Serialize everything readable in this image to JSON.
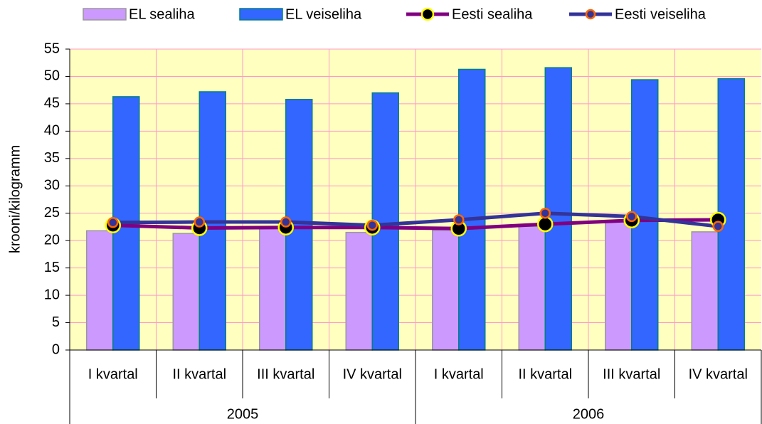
{
  "chart_data": {
    "type": "bar",
    "y_label": "krooni/kilogramm",
    "categories": [
      "I kvartal",
      "II kvartal",
      "III kvartal",
      "IV kvartal",
      "I kvartal",
      "II kvartal",
      "III kvartal",
      "IV kvartal"
    ],
    "groups": [
      "2005",
      "2006"
    ],
    "series": [
      {
        "name": "EL sealiha",
        "type": "bar",
        "color": "#cc99ff",
        "edge": "#999999",
        "values": [
          21.8,
          21.3,
          22.3,
          21.5,
          21.9,
          22.6,
          23.6,
          21.6
        ]
      },
      {
        "name": "EL veiseliha",
        "type": "bar",
        "color": "#3366ff",
        "edge": "#008080",
        "values": [
          46.3,
          47.2,
          45.8,
          47.0,
          51.3,
          51.6,
          49.4,
          49.6
        ]
      },
      {
        "name": "Eesti sealiha",
        "type": "line",
        "color": "#800080",
        "marker_color": "#000000",
        "marker_edge": "#ffff00",
        "values": [
          22.8,
          22.3,
          22.4,
          22.4,
          22.2,
          23.0,
          23.7,
          23.8
        ]
      },
      {
        "name": "Eesti veiseliha",
        "type": "line",
        "color": "#333399",
        "marker_color": "#333399",
        "marker_edge": "#ff6600",
        "values": [
          23.3,
          23.4,
          23.4,
          22.8,
          23.8,
          25.0,
          24.4,
          22.6
        ]
      }
    ],
    "ylim": [
      0,
      55
    ],
    "yticks": [
      0,
      5,
      10,
      15,
      20,
      25,
      30,
      35,
      40,
      45,
      50,
      55
    ],
    "grid": true,
    "grid_color": "#ff99cc",
    "background": "#ffffc0",
    "legend": "top"
  }
}
